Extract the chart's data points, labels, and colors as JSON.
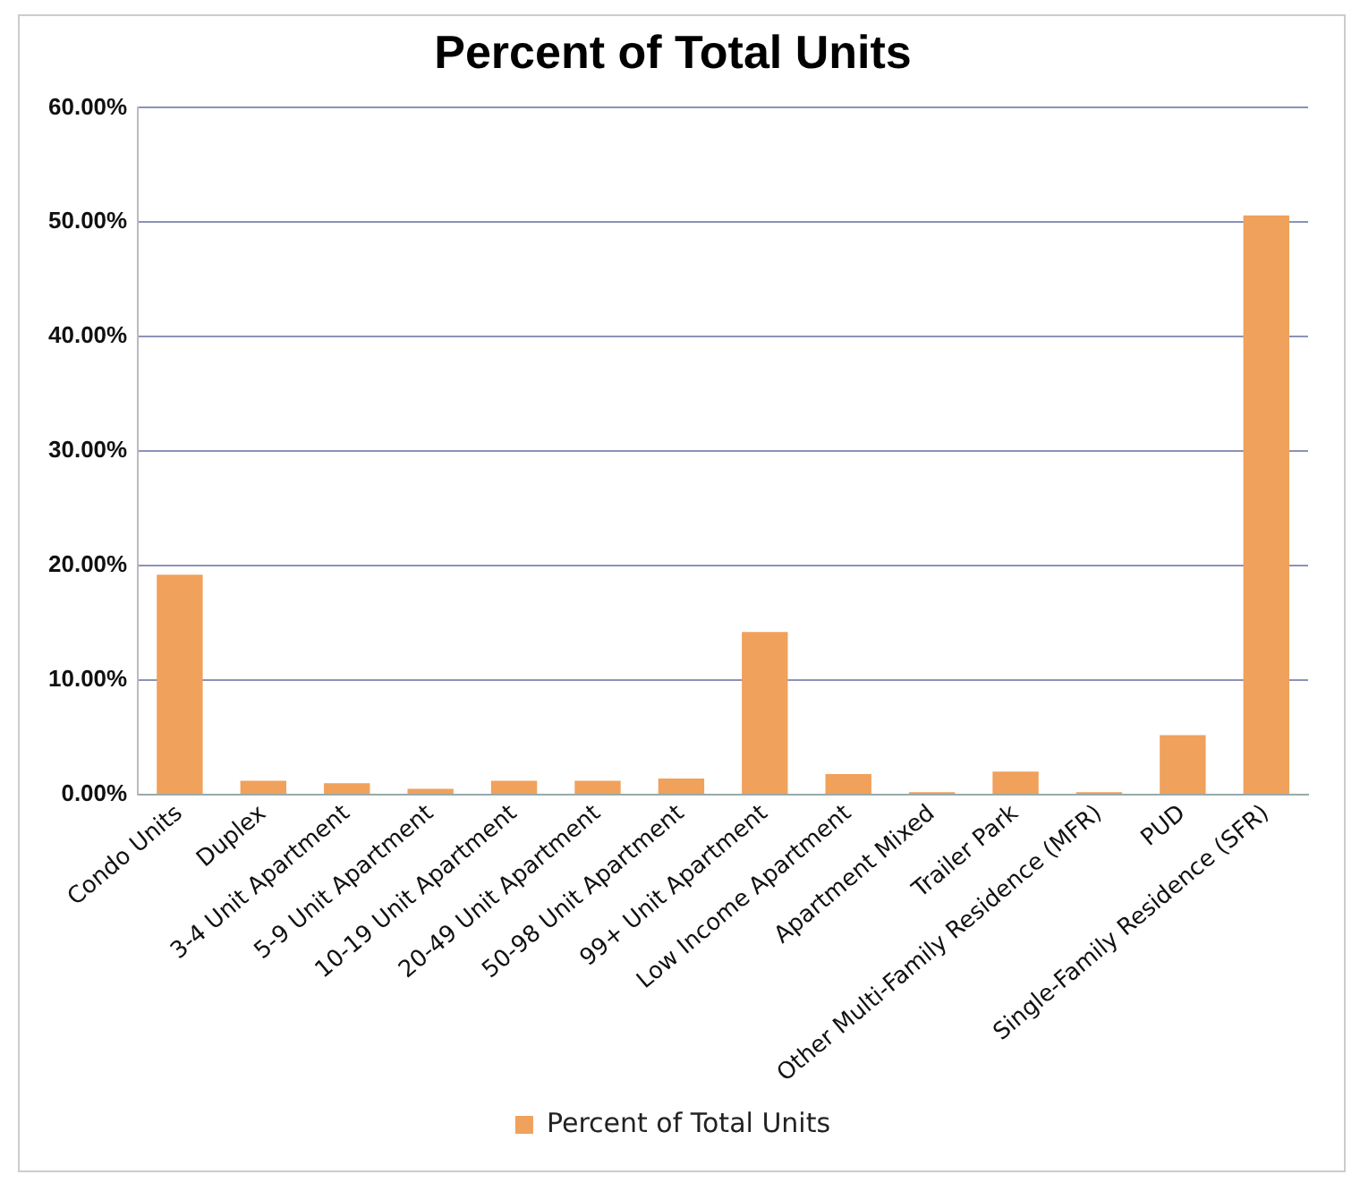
{
  "chart_data": {
    "type": "bar",
    "title": "Percent of Total Units",
    "categories": [
      "Condo Units",
      "Duplex",
      "3-4 Unit Apartment",
      "5-9 Unit Apartment",
      "10-19 Unit Apartment",
      "20-49 Unit Apartment",
      "50-98 Unit Apartment",
      "99+ Unit Apartment",
      "Low Income Apartment",
      "Apartment Mixed",
      "Trailer Park",
      "Other Multi-Family Residence (MFR)",
      "PUD",
      "Single-Family Residence (SFR)"
    ],
    "series": [
      {
        "name": "Percent of Total Units",
        "color": "#f0a15c",
        "values": [
          19.2,
          1.2,
          1.0,
          0.5,
          1.2,
          1.2,
          1.4,
          14.2,
          1.8,
          0.2,
          2.0,
          0.2,
          5.2,
          50.6
        ]
      }
    ],
    "ylim": [
      0,
      60
    ],
    "yticks": [
      {
        "value": 0,
        "label": "0.00%"
      },
      {
        "value": 10,
        "label": "10.00%"
      },
      {
        "value": 20,
        "label": "20.00%"
      },
      {
        "value": 30,
        "label": "30.00%"
      },
      {
        "value": 40,
        "label": "40.00%"
      },
      {
        "value": 50,
        "label": "50.00%"
      },
      {
        "value": 60,
        "label": "60.00%"
      }
    ],
    "grid": "y",
    "legend": "bottom"
  }
}
